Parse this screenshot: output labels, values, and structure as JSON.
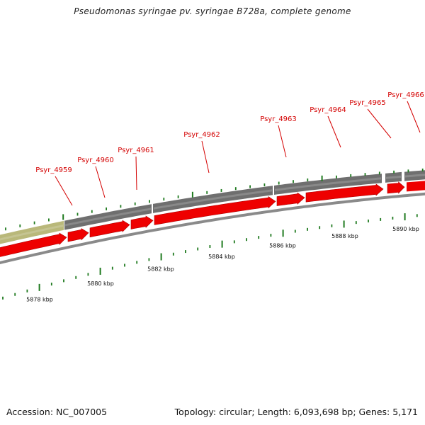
{
  "header": {
    "title": "Pseudomonas syringae pv. syringae B728a, complete genome"
  },
  "footer": {
    "accession": "Accession: NC_007005",
    "summary": "Topology: circular; Length: 6,093,698 bp; Genes: 5,171"
  },
  "colors": {
    "gene_label": "#d40000",
    "cds": "#ee0000",
    "gene_bar": "#6f6f6f",
    "gene_bar_highlight": "#b9b87a",
    "backbone": "#8a8a8a",
    "tick": "#1f7a1f"
  },
  "genes": [
    {
      "label": "Psyr_4959"
    },
    {
      "label": "Psyr_4960"
    },
    {
      "label": "Psyr_4961"
    },
    {
      "label": "Psyr_4962"
    },
    {
      "label": "Psyr_4963"
    },
    {
      "label": "Psyr_4964"
    },
    {
      "label": "Psyr_4965"
    },
    {
      "label": "Psyr_4966"
    }
  ],
  "scale_labels": [
    "5878 kbp",
    "5880 kbp",
    "5882 kbp",
    "5884 kbp",
    "5886 kbp",
    "5888 kbp",
    "5890 kbp"
  ]
}
